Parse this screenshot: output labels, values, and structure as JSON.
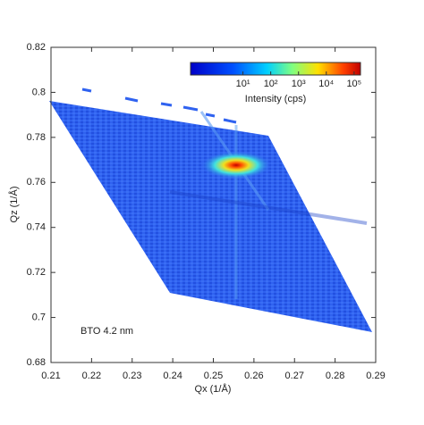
{
  "chart_data": {
    "type": "heatmap",
    "x_label": "Qx (1/Å)",
    "y_label": "Qz (1/Å)",
    "xlim": [
      0.21,
      0.29
    ],
    "xticks": [
      0.21,
      0.22,
      0.23,
      0.24,
      0.25,
      0.26,
      0.27,
      0.28,
      0.29
    ],
    "ylim": [
      0.68,
      0.82
    ],
    "yticks": [
      0.68,
      0.7,
      0.72,
      0.74,
      0.76,
      0.78,
      0.8,
      0.82
    ],
    "colorbar": {
      "label": "Intensity (cps)",
      "log": true,
      "clim": [
        0.13,
        170000
      ],
      "ticks": [
        {
          "value": 10,
          "label": "10¹"
        },
        {
          "value": 100,
          "label": "10²"
        },
        {
          "value": 1000,
          "label": "10³"
        },
        {
          "value": 10000,
          "label": "10⁴"
        },
        {
          "value": 100000,
          "label": "10⁵"
        }
      ]
    },
    "annotation": "BTO 4.2 nm"
  }
}
